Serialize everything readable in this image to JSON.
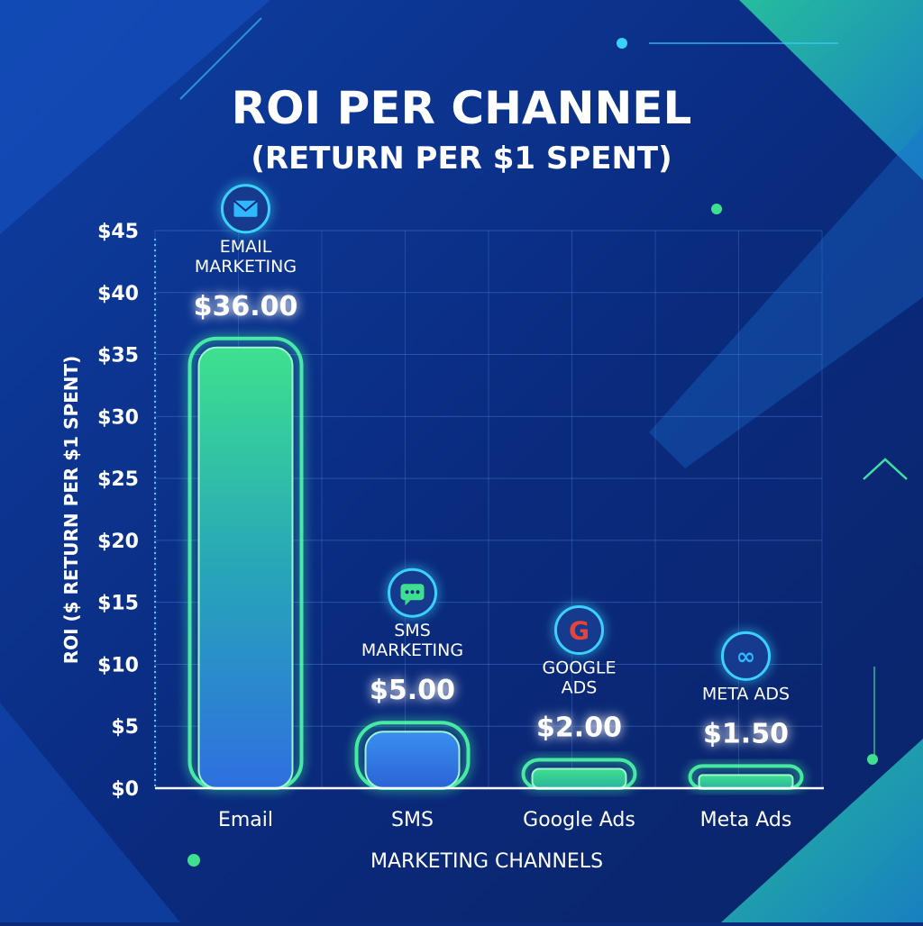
{
  "chart_data": {
    "type": "bar",
    "title": "ROI PER CHANNEL",
    "subtitle": "(RETURN PER $1 SPENT)",
    "xlabel": "MARKETING CHANNELS",
    "ylabel": "ROI ($ RETURN PER $1 SPENT)",
    "ylim": [
      0,
      45
    ],
    "yticks": [
      0,
      5,
      10,
      15,
      20,
      25,
      30,
      35,
      40,
      45
    ],
    "ytick_labels": [
      "$0",
      "$5",
      "$10",
      "$15",
      "$20",
      "$25",
      "$30",
      "$35",
      "$40",
      "$45"
    ],
    "categories": [
      "Email",
      "SMS",
      "Google Ads",
      "Meta Ads"
    ],
    "values": [
      36,
      5,
      2,
      1.5
    ],
    "grid": true,
    "annotations": [
      {
        "label_lines": [
          "EMAIL",
          "MARKETING"
        ],
        "value_label": "$36.00",
        "icon": "envelope-icon"
      },
      {
        "label_lines": [
          "SMS",
          "MARKETING"
        ],
        "value_label": "$5.00",
        "icon": "chat-bubble-icon"
      },
      {
        "label_lines": [
          "GOOGLE",
          "ADS"
        ],
        "value_label": "$2.00",
        "icon": "google-logo-icon"
      },
      {
        "label_lines": [
          "META ADS"
        ],
        "value_label": "$1.50",
        "icon": "meta-logo-icon"
      }
    ],
    "colors": {
      "background": "#0b2a7a",
      "bar_green": "#3ee08f",
      "bar_blue": "#2f6fe0",
      "glow": "#4dffa8",
      "text": "#ffffff"
    }
  }
}
